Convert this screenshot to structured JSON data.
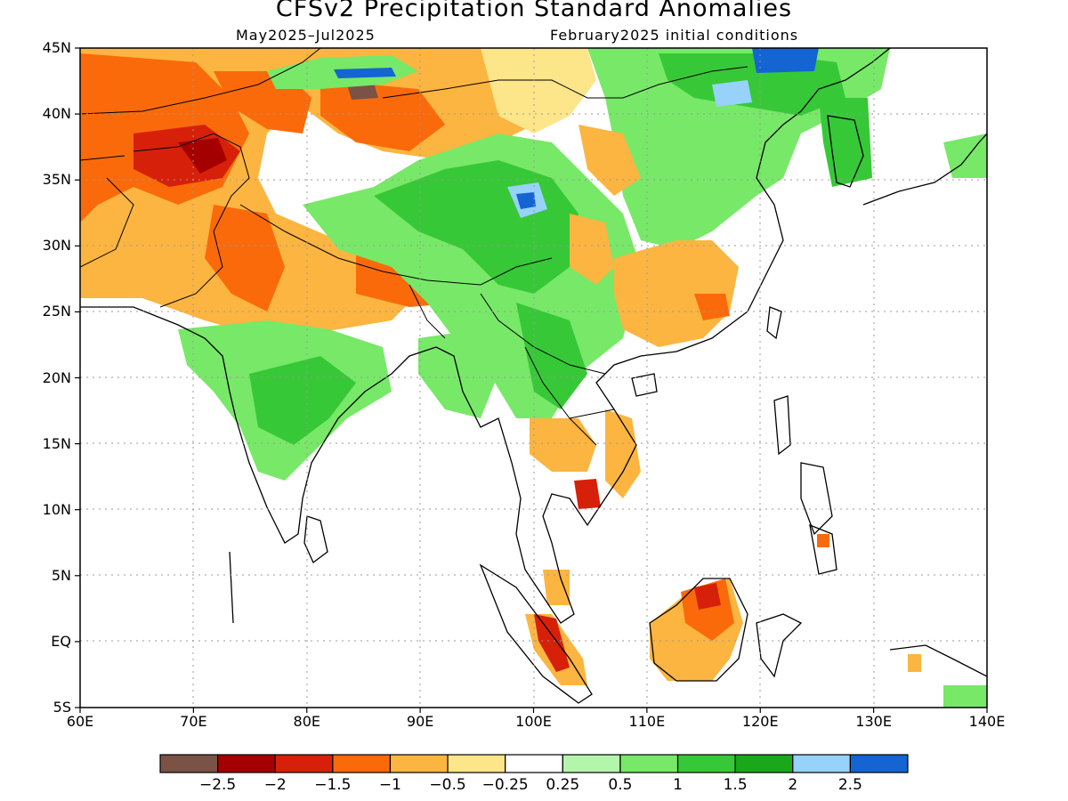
{
  "title": "CFSv2 Precipitation Standard Anomalies",
  "subtitle_left": "May2025–Jul2025",
  "subtitle_right": "February2025 initial conditions",
  "chart_data": {
    "type": "heatmap",
    "lon_range": [
      60,
      140
    ],
    "lat_range": [
      -5,
      45
    ],
    "y_tick_labels": [
      "45N",
      "40N",
      "35N",
      "30N",
      "25N",
      "20N",
      "15N",
      "10N",
      "5N",
      "EQ",
      "5S"
    ],
    "x_tick_labels": [
      "60E",
      "70E",
      "80E",
      "90E",
      "100E",
      "110E",
      "120E",
      "130E",
      "140E"
    ],
    "colorbar": {
      "labels": [
        "−2.5",
        "−2",
        "−1.5",
        "−1",
        "−0.5",
        "−0.25",
        "0.25",
        "0.5",
        "1",
        "1.5",
        "2",
        "2.5"
      ],
      "colors": [
        "#7a5246",
        "#a50000",
        "#d7200a",
        "#fa6a0a",
        "#fbb540",
        "#fde58a",
        "#ffffff",
        "#b4f5ac",
        "#78e868",
        "#37c837",
        "#1aa81a",
        "#96d2fa",
        "#1464d2"
      ]
    }
  }
}
